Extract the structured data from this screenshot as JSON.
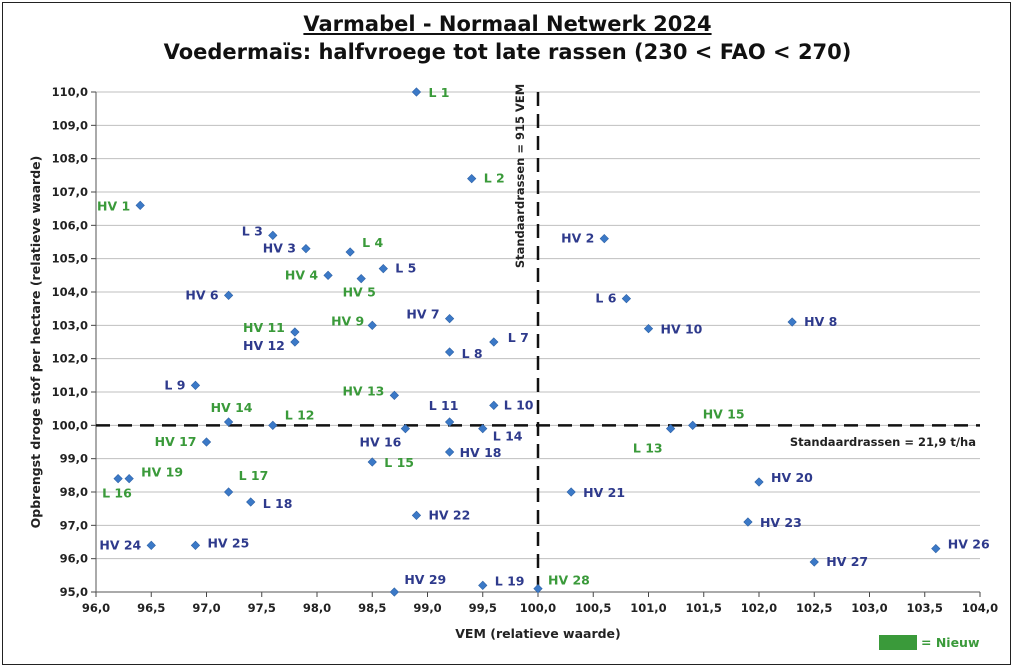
{
  "colors": {
    "marker": "#3b79c7",
    "label_standard": "#2e3a8c",
    "label_new": "#3a9a3a",
    "grid": "#bfbfbf",
    "reference": "#111111"
  },
  "chart_data": {
    "type": "scatter",
    "title": "Varmabel - Normaal Netwerk 2024",
    "subtitle": "Voedermaïs: halfvroege tot late rassen (230 < FAO < 270)",
    "xlabel": "VEM (relatieve waarde)",
    "ylabel": "Opbrengst droge stof per hectare (relatieve waarde)",
    "xlim": [
      96.0,
      104.0
    ],
    "ylim": [
      95.0,
      110.0
    ],
    "xticks": [
      "96,0",
      "96,5",
      "97,0",
      "97,5",
      "98,0",
      "98,5",
      "99,0",
      "99,5",
      "100,0",
      "100,5",
      "101,0",
      "101,5",
      "102,0",
      "102,5",
      "103,0",
      "103,5",
      "104,0"
    ],
    "yticks": [
      "95,0",
      "96,0",
      "97,0",
      "98,0",
      "99,0",
      "100,0",
      "101,0",
      "102,0",
      "103,0",
      "104,0",
      "105,0",
      "106,0",
      "107,0",
      "108,0",
      "109,0",
      "110,0"
    ],
    "grid": "horizontal",
    "reference_lines": {
      "vertical": {
        "x": 100.0,
        "label": "Standaardrassen = 915 VEM"
      },
      "horizontal": {
        "y": 100.0,
        "label": "Standaardrassen = 21,9 t/ha"
      }
    },
    "legend": {
      "label": "= Nieuw",
      "placement": "bottom-right"
    },
    "points": [
      {
        "name": "L 1",
        "x": 98.9,
        "y": 110.0,
        "new": true
      },
      {
        "name": "L 2",
        "x": 99.4,
        "y": 107.4,
        "new": true
      },
      {
        "name": "HV 1",
        "x": 96.4,
        "y": 106.6,
        "new": true
      },
      {
        "name": "L 3",
        "x": 97.6,
        "y": 105.7,
        "new": false
      },
      {
        "name": "HV 3",
        "x": 97.9,
        "y": 105.3,
        "new": false
      },
      {
        "name": "L 4",
        "x": 98.3,
        "y": 105.2,
        "new": true
      },
      {
        "name": "L 5",
        "x": 98.6,
        "y": 104.7,
        "new": false
      },
      {
        "name": "HV 4",
        "x": 98.1,
        "y": 104.5,
        "new": true
      },
      {
        "name": "HV 5",
        "x": 98.4,
        "y": 104.4,
        "new": true
      },
      {
        "name": "HV 6",
        "x": 97.2,
        "y": 103.9,
        "new": false
      },
      {
        "name": "HV 2",
        "x": 100.6,
        "y": 105.6,
        "new": false
      },
      {
        "name": "L 6",
        "x": 100.8,
        "y": 103.8,
        "new": false
      },
      {
        "name": "HV 10",
        "x": 101.0,
        "y": 102.9,
        "new": false
      },
      {
        "name": "HV 8",
        "x": 102.3,
        "y": 103.1,
        "new": false
      },
      {
        "name": "HV 7",
        "x": 99.2,
        "y": 103.2,
        "new": false
      },
      {
        "name": "HV 9",
        "x": 98.5,
        "y": 103.0,
        "new": true
      },
      {
        "name": "HV 11",
        "x": 97.8,
        "y": 102.8,
        "new": true
      },
      {
        "name": "HV 12",
        "x": 97.8,
        "y": 102.5,
        "new": false
      },
      {
        "name": "L 7",
        "x": 99.6,
        "y": 102.5,
        "new": false
      },
      {
        "name": "L 8",
        "x": 99.2,
        "y": 102.2,
        "new": false
      },
      {
        "name": "L 9",
        "x": 96.9,
        "y": 101.2,
        "new": false
      },
      {
        "name": "HV 13",
        "x": 98.7,
        "y": 100.9,
        "new": true
      },
      {
        "name": "L 10",
        "x": 99.6,
        "y": 100.6,
        "new": false
      },
      {
        "name": "L 11",
        "x": 99.2,
        "y": 100.1,
        "new": false
      },
      {
        "name": "HV 14",
        "x": 97.2,
        "y": 100.1,
        "new": true
      },
      {
        "name": "L 12",
        "x": 97.6,
        "y": 100.0,
        "new": true
      },
      {
        "name": "HV 16",
        "x": 98.8,
        "y": 99.9,
        "new": false
      },
      {
        "name": "L 14",
        "x": 99.5,
        "y": 99.9,
        "new": false
      },
      {
        "name": "HV 15",
        "x": 101.4,
        "y": 100.0,
        "new": true
      },
      {
        "name": "L 13",
        "x": 101.2,
        "y": 99.9,
        "new": true
      },
      {
        "name": "HV 17",
        "x": 97.0,
        "y": 99.5,
        "new": true
      },
      {
        "name": "HV 18",
        "x": 99.2,
        "y": 99.2,
        "new": false
      },
      {
        "name": "L 15",
        "x": 98.5,
        "y": 98.9,
        "new": true
      },
      {
        "name": "L 16",
        "x": 96.2,
        "y": 98.4,
        "new": true
      },
      {
        "name": "HV 19",
        "x": 96.3,
        "y": 98.4,
        "new": true
      },
      {
        "name": "L 17",
        "x": 97.2,
        "y": 98.0,
        "new": true
      },
      {
        "name": "L 18",
        "x": 97.4,
        "y": 97.7,
        "new": false
      },
      {
        "name": "HV 21",
        "x": 100.3,
        "y": 98.0,
        "new": false
      },
      {
        "name": "HV 20",
        "x": 102.0,
        "y": 98.3,
        "new": false
      },
      {
        "name": "HV 22",
        "x": 98.9,
        "y": 97.3,
        "new": false
      },
      {
        "name": "HV 23",
        "x": 101.9,
        "y": 97.1,
        "new": false
      },
      {
        "name": "HV 24",
        "x": 96.5,
        "y": 96.4,
        "new": false
      },
      {
        "name": "HV 25",
        "x": 96.9,
        "y": 96.4,
        "new": false
      },
      {
        "name": "HV 26",
        "x": 103.6,
        "y": 96.3,
        "new": false
      },
      {
        "name": "HV 27",
        "x": 102.5,
        "y": 95.9,
        "new": false
      },
      {
        "name": "HV 29",
        "x": 98.7,
        "y": 95.0,
        "new": false
      },
      {
        "name": "L 19",
        "x": 99.5,
        "y": 95.2,
        "new": false
      },
      {
        "name": "HV 28",
        "x": 100.0,
        "y": 95.1,
        "new": true
      }
    ]
  }
}
